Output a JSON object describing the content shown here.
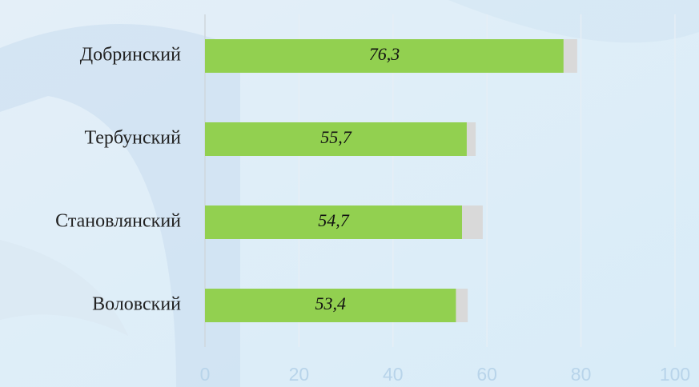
{
  "chart_data": {
    "type": "bar",
    "orientation": "horizontal",
    "stacked": true,
    "categories": [
      "Добринский",
      "Тербунский",
      "Становлянский",
      "Воловский"
    ],
    "series": [
      {
        "color": "#92d050",
        "values": [
          76.3,
          55.7,
          54.7,
          53.4
        ],
        "value_labels": [
          "76,3",
          "55,7",
          "54,7",
          "53,4"
        ]
      },
      {
        "color": "#d9d9d9",
        "values": [
          2.9,
          1.9,
          4.4,
          2.5
        ]
      }
    ],
    "xlim": [
      0,
      100
    ],
    "xticks": [
      0,
      20,
      40,
      60,
      80,
      100
    ],
    "grid": true
  }
}
